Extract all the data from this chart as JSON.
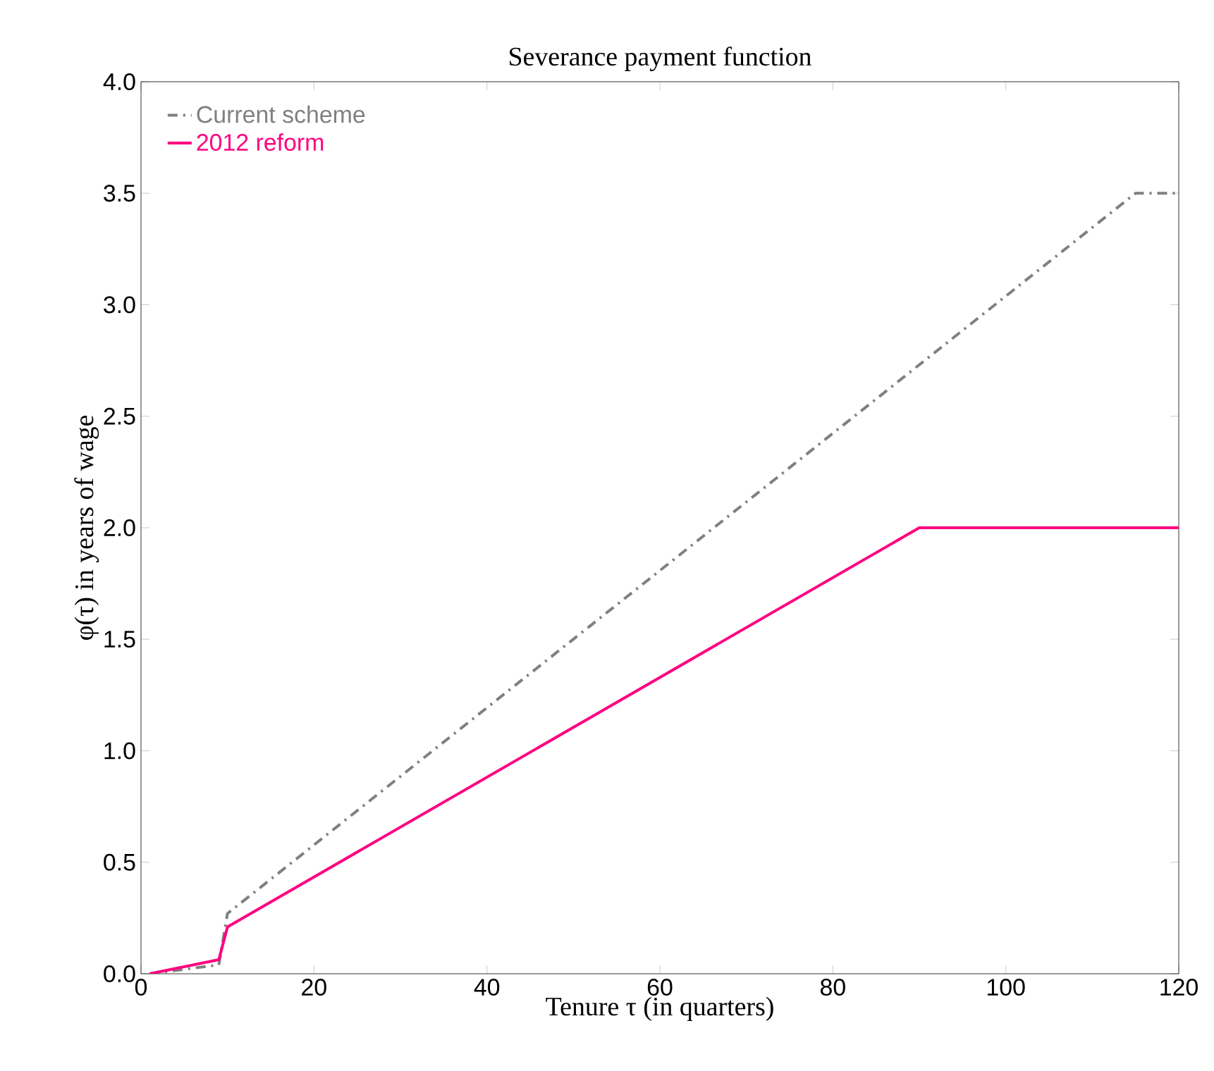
{
  "chart_data": {
    "type": "line",
    "title": "Severance payment function",
    "xlabel": "Tenure τ (in quarters)",
    "ylabel": "φ(τ) in years of wage",
    "xlim": [
      0,
      120
    ],
    "xticks": [
      0,
      20,
      40,
      60,
      80,
      100,
      120
    ],
    "ylim": [
      0,
      4
    ],
    "yticks": [
      {
        "value": 0,
        "label": "0.0"
      },
      {
        "value": 0.5,
        "label": "0.5"
      },
      {
        "value": 1,
        "label": "1.0"
      },
      {
        "value": 1.5,
        "label": "1.5"
      },
      {
        "value": 2,
        "label": "2.0"
      },
      {
        "value": 2.5,
        "label": "2.5"
      },
      {
        "value": 3,
        "label": "3.0"
      },
      {
        "value": 3.5,
        "label": "3.5"
      },
      {
        "value": 4,
        "label": "4.0"
      }
    ],
    "grid": false,
    "legend": "top left",
    "marker": "none",
    "series": [
      {
        "name": "Current scheme",
        "color": "#808080",
        "line_style": "dashdot",
        "x": [
          1,
          9,
          10,
          115,
          120
        ],
        "values": [
          0,
          0.04,
          0.27,
          3.5,
          3.5
        ]
      },
      {
        "name": "2012 reform",
        "color": "#ff0080",
        "line_style": "solid",
        "x": [
          1,
          9,
          10,
          90,
          120
        ],
        "values": [
          0,
          0.063,
          0.21,
          2.0,
          2.0
        ]
      }
    ]
  }
}
